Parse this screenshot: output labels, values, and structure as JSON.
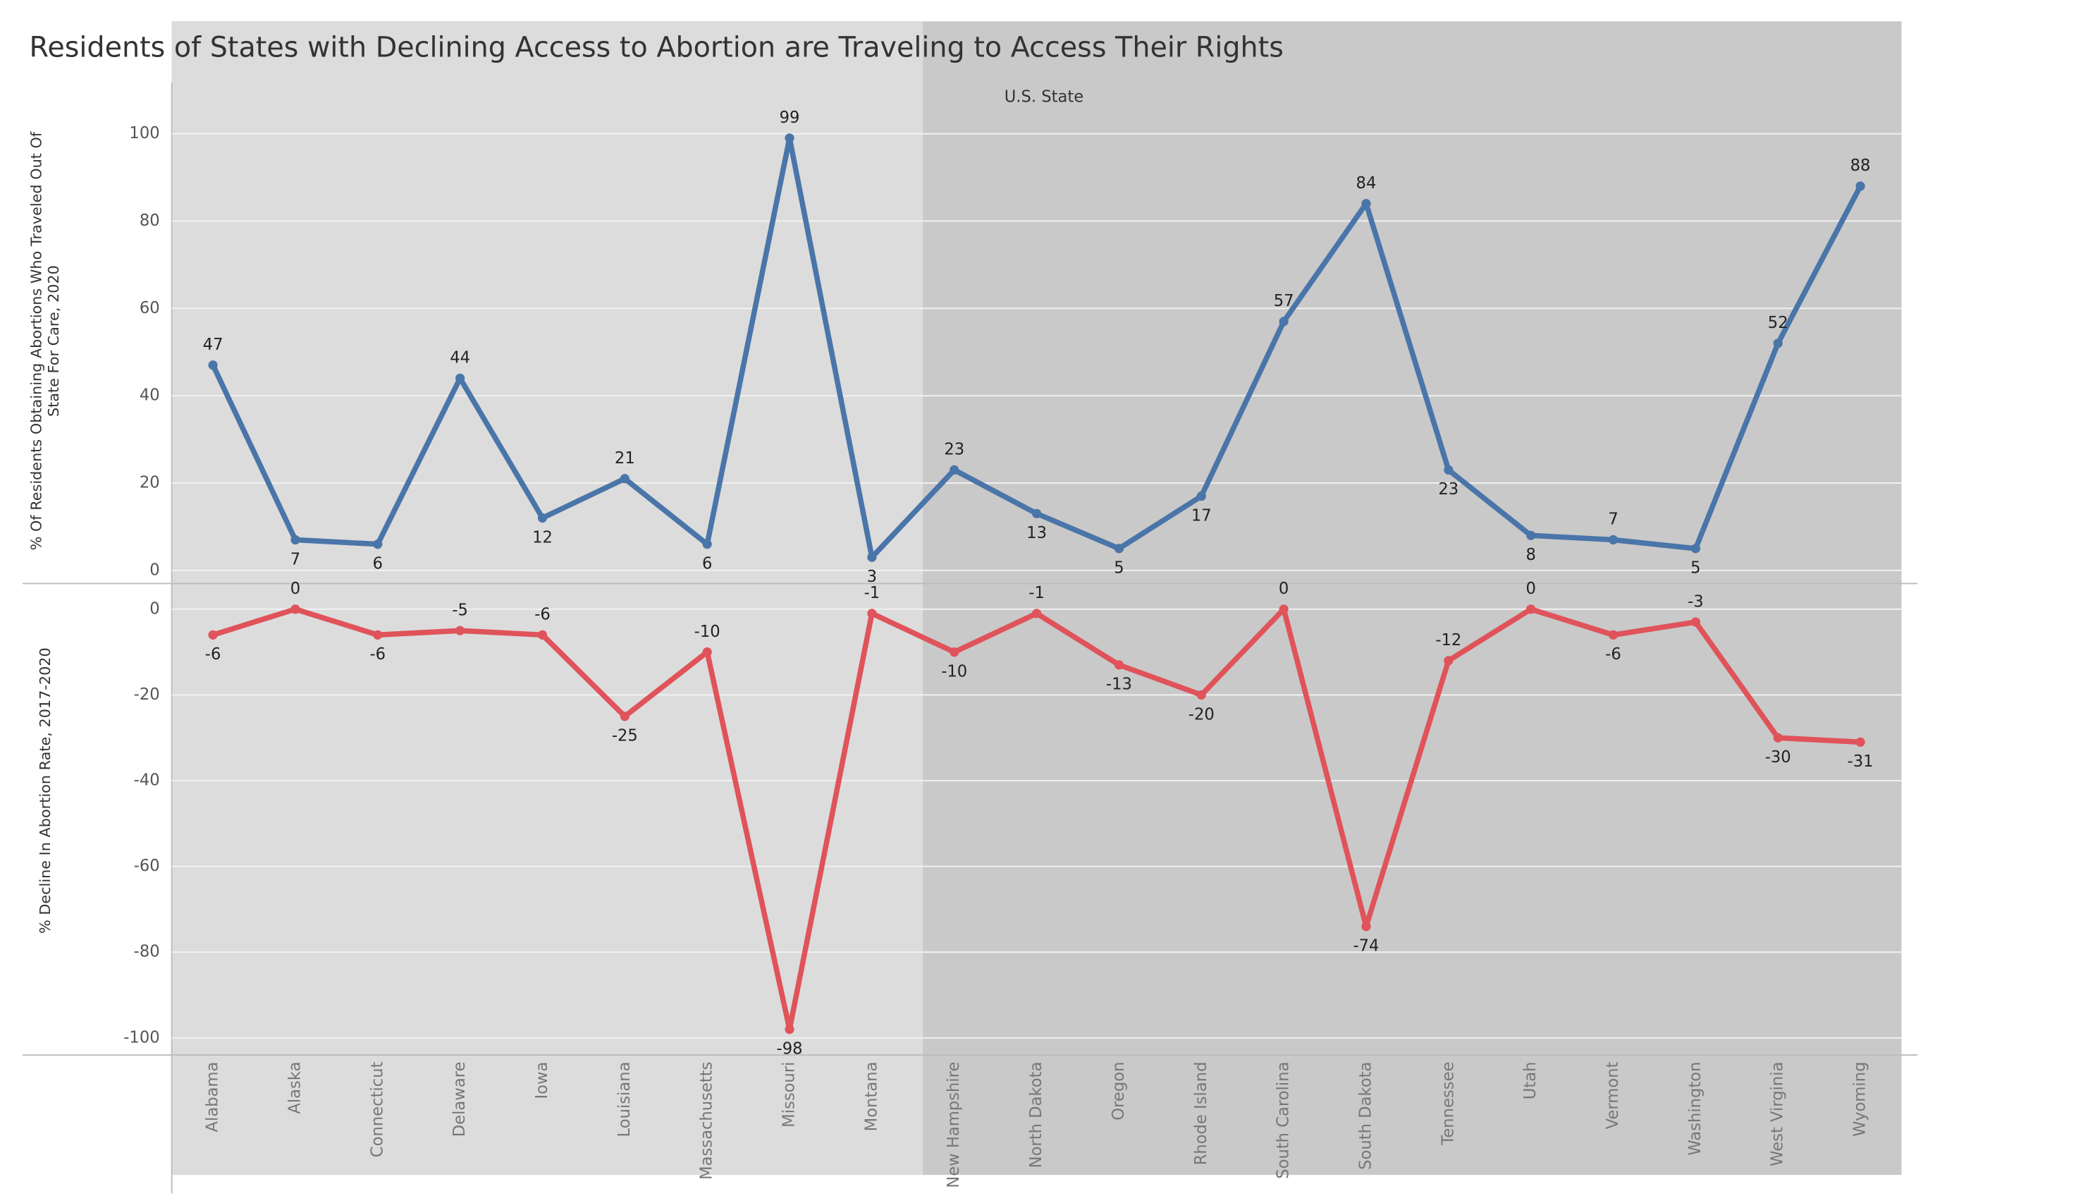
{
  "chart_data": [
    {
      "type": "line",
      "title": "Residents of States with Declining Access to Abortion are Traveling to Access Their Rights",
      "x_label": "U.S. State",
      "y_label": "% Of Residents Obtaining Abortions Who Traveled Out Of State For Care, 2020",
      "categories": [
        "Alabama",
        "Alaska",
        "Connecticut",
        "Delaware",
        "Iowa",
        "Louisiana",
        "Massachusetts",
        "Missouri",
        "Montana",
        "New Hampshire",
        "North Dakota",
        "Oregon",
        "Rhode Island",
        "South Carolina",
        "South Dakota",
        "Tennessee",
        "Utah",
        "Vermont",
        "Washington",
        "West Virginia",
        "Wyoming"
      ],
      "series": [
        {
          "name": "% Of Residents Obtaining Abortions Who Traveled Out Of State For Care, 2020",
          "color": "#4a75a9",
          "values": [
            47,
            7,
            6,
            44,
            12,
            21,
            6,
            99,
            3,
            23,
            13,
            5,
            17,
            57,
            84,
            23,
            8,
            7,
            5,
            52,
            88
          ]
        }
      ],
      "ylim": [
        -3,
        105
      ],
      "yticks": [
        0,
        20,
        40,
        60,
        80,
        100
      ],
      "grid": true
    },
    {
      "type": "line",
      "y_label": "% Decline In Abortion Rate, 2017-2020",
      "series": [
        {
          "name": "% Decline In Abortion Rate, 2017-2020",
          "color": "#e0535a",
          "values": [
            -6,
            0,
            -6,
            -5,
            -6,
            -25,
            -10,
            -98,
            -1,
            -10,
            -1,
            -13,
            -20,
            0,
            -74,
            -12,
            0,
            -6,
            -3,
            -30,
            -31
          ]
        }
      ],
      "ylim": [
        -104,
        6
      ],
      "yticks": [
        -100,
        -80,
        -60,
        -40,
        -20,
        0
      ],
      "grid": true
    }
  ]
}
